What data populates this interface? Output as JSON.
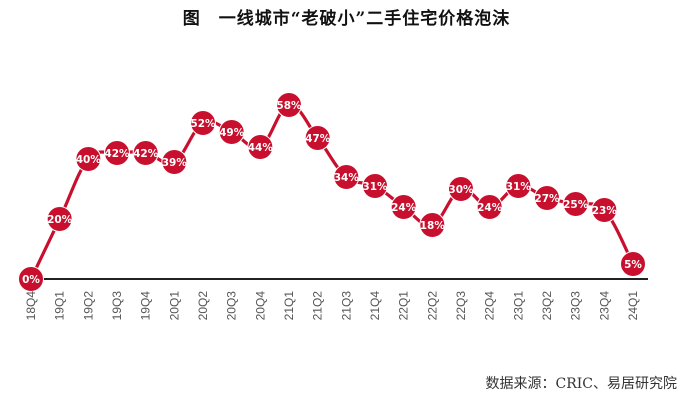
{
  "chart_data": {
    "type": "line",
    "title": "图　一线城市“老破小”二手住宅价格泡沫",
    "categories": [
      "18Q4",
      "19Q1",
      "19Q2",
      "19Q3",
      "19Q4",
      "20Q1",
      "20Q2",
      "20Q3",
      "20Q4",
      "21Q1",
      "21Q2",
      "21Q3",
      "21Q4",
      "22Q1",
      "22Q2",
      "22Q3",
      "22Q4",
      "23Q1",
      "23Q2",
      "23Q3",
      "23Q4",
      "24Q1"
    ],
    "values": [
      0,
      20,
      40,
      42,
      42,
      39,
      52,
      49,
      44,
      58,
      47,
      34,
      31,
      24,
      18,
      30,
      24,
      31,
      27,
      25,
      23,
      5
    ],
    "data_labels": [
      "0%",
      "20%",
      "40%",
      "42%",
      "42%",
      "39%",
      "52%",
      "49%",
      "44%",
      "58%",
      "47%",
      "34%",
      "31%",
      "24%",
      "18%",
      "30%",
      "24%",
      "31%",
      "27%",
      "25%",
      "23%",
      "5%"
    ],
    "xlabel": "",
    "ylabel": "",
    "grid": false,
    "colors": {
      "line": "#c8102e",
      "marker": "#c8102e",
      "baseline": "#222222"
    },
    "source": "数据来源：CRIC、易居研究院"
  }
}
